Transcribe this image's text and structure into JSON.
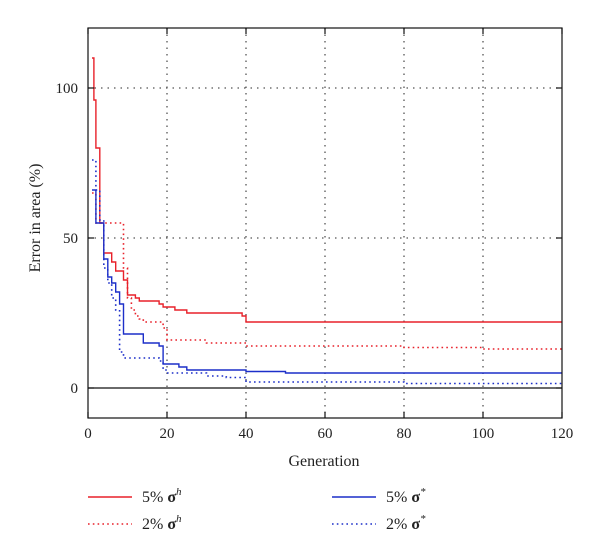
{
  "chart_data": {
    "type": "line",
    "title": "",
    "xlabel": "Generation",
    "ylabel": "Error in area (%)",
    "xlim": [
      0,
      120
    ],
    "ylim": [
      -10,
      120
    ],
    "xticks": [
      0,
      20,
      40,
      60,
      80,
      100,
      120
    ],
    "yticks": [
      0,
      50,
      100
    ],
    "grid": "dotted, x every 20, y at 50 and 100",
    "zero_line": true,
    "legend_position": "bottom",
    "series": [
      {
        "name": "5% σ^h",
        "legend_prefix": "5% ",
        "legend_symbol": "σ",
        "legend_sup": "h",
        "color": "#e8212a",
        "style": "solid",
        "step": true,
        "x": [
          1,
          1.5,
          2,
          3,
          4,
          5,
          6,
          7,
          8,
          9,
          10,
          11,
          12,
          13,
          14,
          15,
          16,
          17,
          18,
          19,
          20,
          21,
          22,
          23,
          24,
          25,
          26,
          30,
          35,
          38,
          39,
          40,
          45,
          50,
          55,
          60,
          80,
          100,
          120
        ],
        "y": [
          110,
          96,
          80,
          55,
          45,
          45,
          42,
          39,
          39,
          36,
          31,
          31,
          30,
          29,
          29,
          29,
          29,
          29,
          28,
          27,
          27,
          27,
          26,
          26,
          26,
          25,
          25,
          25,
          25,
          25,
          24,
          22,
          22,
          22,
          22,
          22,
          22,
          22,
          22
        ]
      },
      {
        "name": "2% σ^h",
        "legend_prefix": "2% ",
        "legend_symbol": "σ",
        "legend_sup": "h",
        "color": "#e8212a",
        "style": "dotted",
        "step": true,
        "x": [
          1,
          2,
          3,
          4,
          5,
          6,
          7,
          8,
          9,
          10,
          11,
          12,
          13,
          14,
          15,
          16,
          17,
          18,
          19,
          20,
          21,
          22,
          25,
          30,
          35,
          40,
          50,
          60,
          80,
          100,
          120
        ],
        "y": [
          65,
          55,
          55,
          55,
          55,
          55,
          55,
          55,
          40,
          30,
          26,
          24,
          23,
          22,
          22,
          22,
          22,
          22,
          20,
          16,
          16,
          16,
          16,
          15,
          15,
          14,
          14,
          14,
          13.5,
          13,
          13
        ]
      },
      {
        "name": "5% σ*",
        "legend_prefix": "5% ",
        "legend_symbol": "σ",
        "legend_sup": "*",
        "color": "#1c2fc9",
        "style": "solid",
        "step": true,
        "x": [
          1,
          2,
          3,
          4,
          5,
          6,
          7,
          8,
          9,
          10,
          11,
          12,
          13,
          14,
          15,
          16,
          17,
          18,
          19,
          20,
          21,
          22,
          23,
          24,
          25,
          30,
          35,
          40,
          45,
          50,
          60,
          80,
          100,
          120
        ],
        "y": [
          66,
          55,
          55,
          43,
          37,
          35,
          32,
          28,
          18,
          18,
          18,
          18,
          18,
          15,
          15,
          15,
          15,
          14,
          8,
          8,
          8,
          8,
          7,
          7,
          6,
          6,
          6,
          5.5,
          5.5,
          5,
          5,
          5,
          5,
          5
        ]
      },
      {
        "name": "2% σ*",
        "legend_prefix": "2% ",
        "legend_symbol": "σ",
        "legend_sup": "*",
        "color": "#1c2fc9",
        "style": "dotted",
        "step": true,
        "x": [
          1,
          2,
          3,
          4,
          5,
          6,
          7,
          8,
          9,
          10,
          12,
          14,
          16,
          18,
          19,
          20,
          25,
          30,
          35,
          40,
          50,
          60,
          80,
          100,
          120
        ],
        "y": [
          76,
          66,
          56,
          40,
          35,
          30,
          26,
          12,
          10,
          10,
          10,
          10,
          10,
          9,
          6,
          5,
          5,
          4,
          3.5,
          2,
          2,
          2,
          1.5,
          1.5,
          1.5
        ]
      }
    ]
  }
}
